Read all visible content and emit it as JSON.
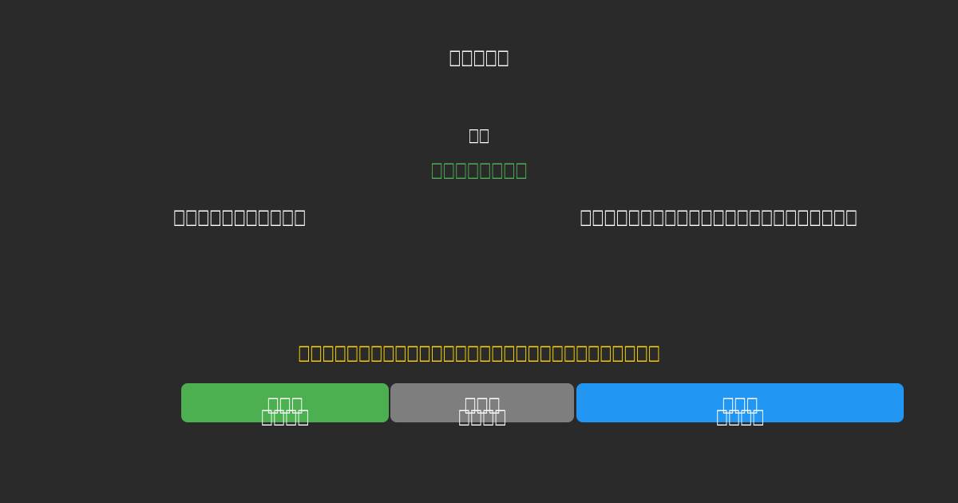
{
  "colors": {
    "background": "#2a2a2a",
    "text_white": "#ffffff",
    "status_green": "#4caf50",
    "warning_yellow": "#ffd700",
    "button_green": "#4caf50",
    "button_gray": "#7e7e7e",
    "button_blue": "#2196f3"
  },
  "header": {
    "title": "□□□□□"
  },
  "main": {
    "heading": "□□",
    "status_text": "□□□□□□□□",
    "description_left": "□□□□□□□□□□□",
    "description_right": "□□□□□□□□□□□□□□□□□□□□□□□",
    "warning_text": "□□□□□□□□□□□□□□□□□□□□□□□□□□□□□□"
  },
  "buttons": [
    {
      "id": "green-action",
      "line1": "□□□",
      "line2": "□□□□",
      "color": "#4caf50"
    },
    {
      "id": "gray-action",
      "line1": "□□□",
      "line2": "□□□□",
      "color": "#7e7e7e"
    },
    {
      "id": "blue-action",
      "line1": "□□□",
      "line2": "□□□□",
      "color": "#2196f3"
    }
  ]
}
